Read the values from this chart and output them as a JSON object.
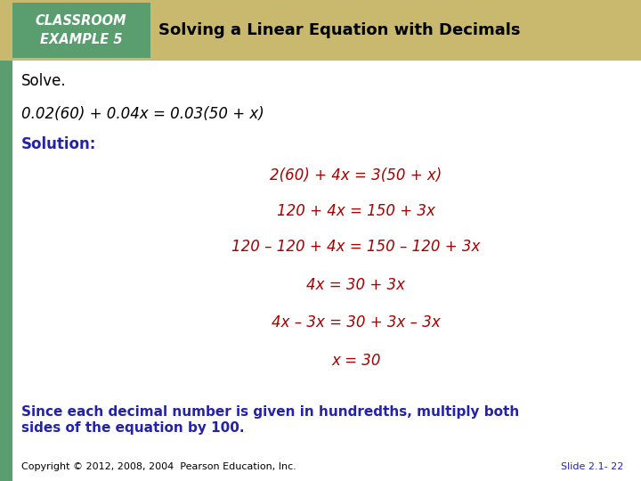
{
  "bg_color": "#ffffff",
  "left_bar_color": "#5a9e6f",
  "header_bg_color": "#c8b96e",
  "header_box_color": "#5a9e6f",
  "header_box_text": "CLASSROOM\nEXAMPLE 5",
  "header_title": "Solving a Linear Equation with Decimals",
  "solve_label": "Solve.",
  "equation": "0.02(60) + 0.04x = 0.03(50 + x)",
  "solution_label": "Solution:",
  "steps": [
    "2(60) + 4x = 3(50 + x)",
    "120 + 4x = 150 + 3x",
    "120 – 120 + 4x = 150 – 120 + 3x",
    "4x = 30 + 3x",
    "4x – 3x = 30 + 3x – 3x",
    "x = 30"
  ],
  "note_line1": "Since each decimal number is given in hundredths, multiply both",
  "note_line2": "sides of the equation by 100.",
  "copyright": "Copyright © 2012, 2008, 2004  Pearson Education, Inc.",
  "slide_label": "Slide 2.1- 22",
  "red_color": "#aa0000",
  "blue_color": "#2222aa",
  "black_color": "#000000",
  "note_color": "#2222aa",
  "header_title_color": "#000000"
}
